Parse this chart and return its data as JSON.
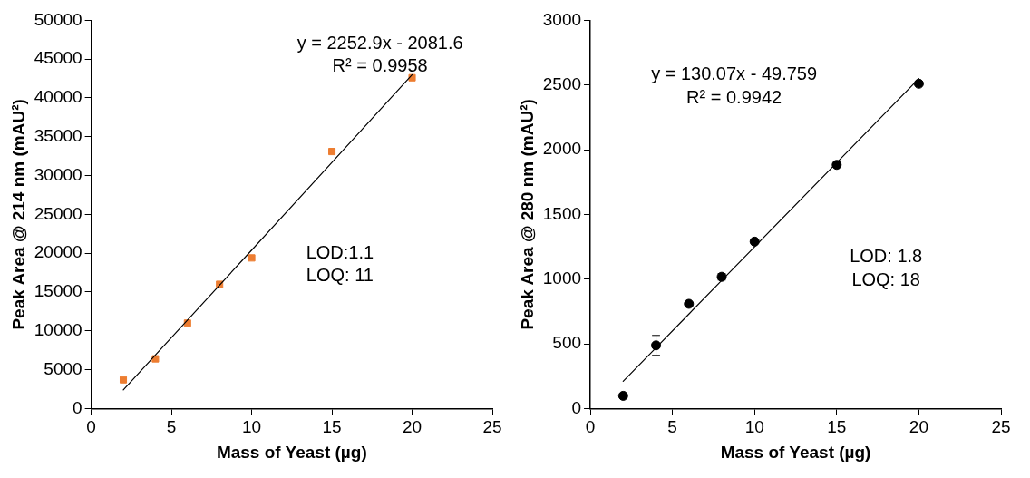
{
  "chart_data": [
    {
      "type": "scatter",
      "xlabel": "Mass of Yeast (µg)",
      "ylabel": "Peak Area @ 214 nm (mAU²)",
      "x": [
        2,
        4,
        6,
        8,
        10,
        15,
        20
      ],
      "series": [
        {
          "type": "scatter",
          "color": "#ed7d31",
          "marker": "square",
          "values": [
            3700,
            6400,
            11000,
            16000,
            19400,
            33100,
            42600
          ]
        },
        {
          "type": "line",
          "color": "#000000",
          "marker": "none",
          "values": [
            2400,
            6900,
            11400,
            15900,
            20400,
            31700,
            43000
          ]
        }
      ],
      "xlim": [
        0,
        25
      ],
      "xticks": [
        0,
        5,
        10,
        15,
        20,
        25
      ],
      "ylim": [
        0,
        50000
      ],
      "yticks": [
        0,
        5000,
        10000,
        15000,
        20000,
        25000,
        30000,
        35000,
        40000,
        45000,
        50000
      ],
      "grid": false,
      "legend": false,
      "annotations": [
        "y = 2252.9x - 2081.6",
        "R² = 0.9958",
        "LOD:1.1",
        "LOQ: 11"
      ]
    },
    {
      "type": "scatter",
      "xlabel": "Mass of Yeast (µg)",
      "ylabel": "Peak Area @ 280 nm (mAU²)",
      "x": [
        2,
        4,
        6,
        8,
        10,
        15,
        20
      ],
      "series": [
        {
          "type": "scatter",
          "color": "#000000",
          "marker": "circle",
          "values": [
            98,
            488,
            809,
            1018,
            1290,
            1883,
            2510
          ],
          "errors": [
            null,
            77,
            null,
            25,
            null,
            null,
            null
          ]
        },
        {
          "type": "line",
          "color": "#000000",
          "marker": "none",
          "values": [
            210,
            470,
            730,
            990,
            1250,
            1900,
            2550
          ]
        }
      ],
      "xlim": [
        0,
        25
      ],
      "xticks": [
        0,
        5,
        10,
        15,
        20,
        25
      ],
      "ylim": [
        0,
        3000
      ],
      "yticks": [
        0,
        500,
        1000,
        1500,
        2000,
        2500,
        3000
      ],
      "grid": false,
      "legend": false,
      "annotations": [
        "y = 130.07x - 49.759",
        "R² = 0.9942",
        "LOD: 1.8",
        "LOQ: 18"
      ]
    }
  ]
}
